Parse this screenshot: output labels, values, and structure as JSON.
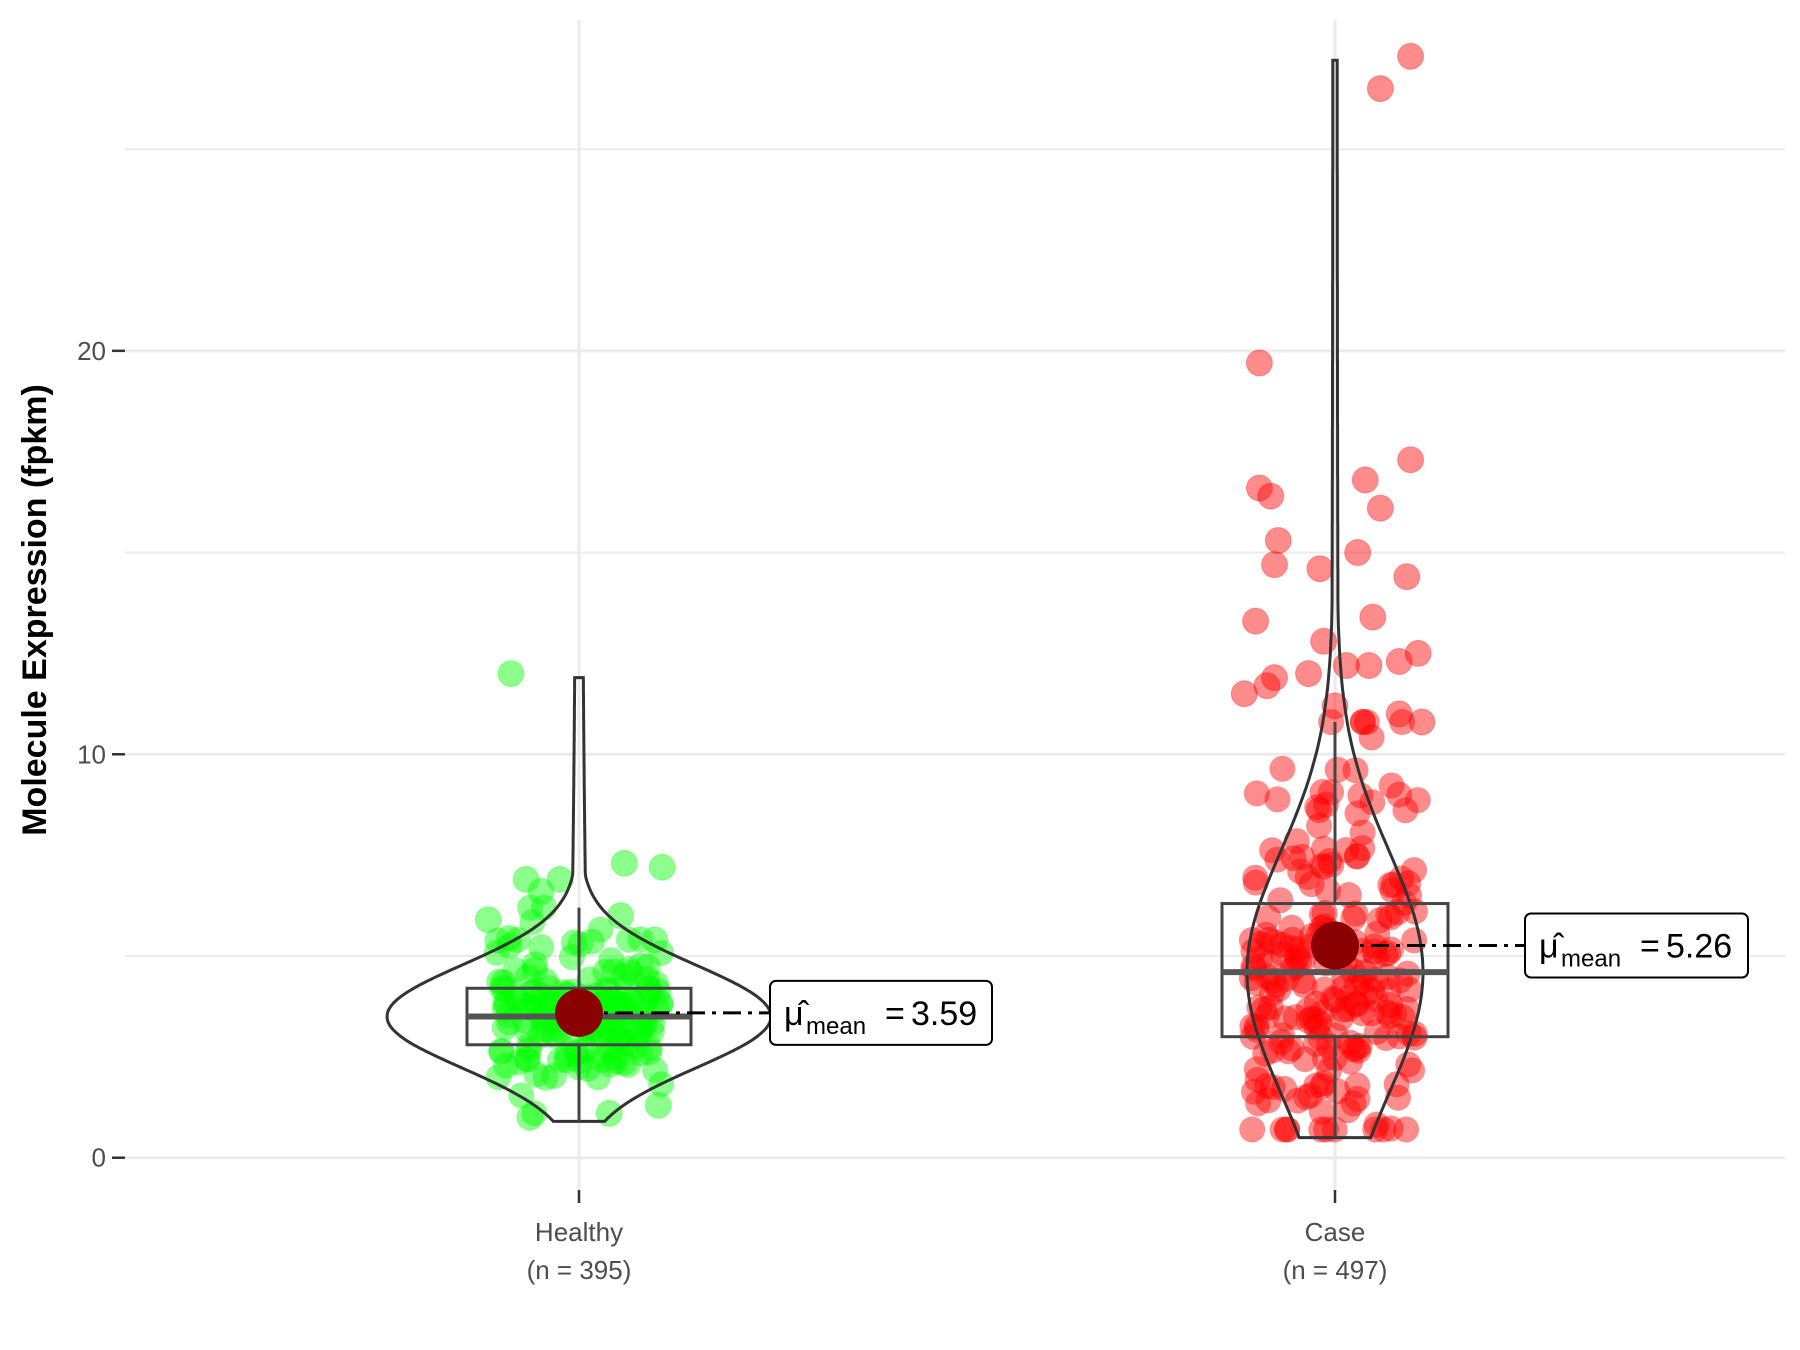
{
  "chart_data": {
    "type": "violin",
    "title": "",
    "xlabel": "",
    "ylabel": "Molecule Expression (fpkm)",
    "ylim": [
      -0.8,
      28.2
    ],
    "y_ticks": [
      0,
      10,
      20
    ],
    "grid": true,
    "legend": "none",
    "annotation_symbol": "μ̂",
    "annotation_subscript": "mean",
    "groups": [
      {
        "category": "Healthy",
        "n_label": "(n = 395)",
        "color": "#00ff00",
        "mean": 3.59,
        "mean_label": "3.59",
        "box": {
          "q1": 2.8,
          "median": 3.5,
          "q3": 4.2,
          "whisker_low": 0.9,
          "whisker_high": 6.2
        },
        "violin_min": 0.9,
        "violin_max": 11.9,
        "outliers": [
          {
            "y": 12.0,
            "jitter": -0.18
          },
          {
            "y": 7.3,
            "jitter": 0.12
          },
          {
            "y": 7.2,
            "jitter": 0.22
          },
          {
            "y": 6.9,
            "jitter": -0.14
          },
          {
            "y": 6.9,
            "jitter": -0.05
          },
          {
            "y": 6.6,
            "jitter": -0.1
          },
          {
            "y": 6.0,
            "jitter": 0.11
          },
          {
            "y": 5.9,
            "jitter": -0.24
          },
          {
            "y": 5.4,
            "jitter": 0.2
          },
          {
            "y": 1.0,
            "jitter": -0.13
          },
          {
            "y": 1.1,
            "jitter": 0.08
          },
          {
            "y": 1.3,
            "jitter": 0.21
          }
        ]
      },
      {
        "category": "Case",
        "n_label": "(n = 497)",
        "color": "#ff0000",
        "mean": 5.26,
        "mean_label": "5.26",
        "box": {
          "q1": 3.0,
          "median": 4.6,
          "q3": 6.3,
          "whisker_low": 0.5,
          "whisker_high": 10.8
        },
        "violin_min": 0.5,
        "violin_max": 27.2,
        "outliers": [
          {
            "y": 27.3,
            "jitter": 0.2
          },
          {
            "y": 26.5,
            "jitter": 0.12
          },
          {
            "y": 19.7,
            "jitter": -0.2
          },
          {
            "y": 17.3,
            "jitter": 0.2
          },
          {
            "y": 16.8,
            "jitter": 0.08
          },
          {
            "y": 16.6,
            "jitter": -0.2
          },
          {
            "y": 16.4,
            "jitter": -0.17
          },
          {
            "y": 16.1,
            "jitter": 0.12
          },
          {
            "y": 15.3,
            "jitter": -0.15
          },
          {
            "y": 15.0,
            "jitter": 0.06
          },
          {
            "y": 14.7,
            "jitter": -0.16
          },
          {
            "y": 14.6,
            "jitter": -0.04
          },
          {
            "y": 14.4,
            "jitter": 0.19
          },
          {
            "y": 13.4,
            "jitter": 0.1
          },
          {
            "y": 13.3,
            "jitter": -0.21
          },
          {
            "y": 12.8,
            "jitter": -0.03
          },
          {
            "y": 12.5,
            "jitter": 0.22
          },
          {
            "y": 12.3,
            "jitter": 0.17
          },
          {
            "y": 12.2,
            "jitter": 0.03
          },
          {
            "y": 12.2,
            "jitter": 0.09
          },
          {
            "y": 12.0,
            "jitter": -0.07
          },
          {
            "y": 11.9,
            "jitter": -0.16
          },
          {
            "y": 11.7,
            "jitter": -0.18
          },
          {
            "y": 11.5,
            "jitter": -0.24
          },
          {
            "y": 11.2,
            "jitter": 0.0
          },
          {
            "y": 11.0,
            "jitter": 0.17
          },
          {
            "y": 10.8,
            "jitter": 0.23
          }
        ]
      }
    ]
  }
}
